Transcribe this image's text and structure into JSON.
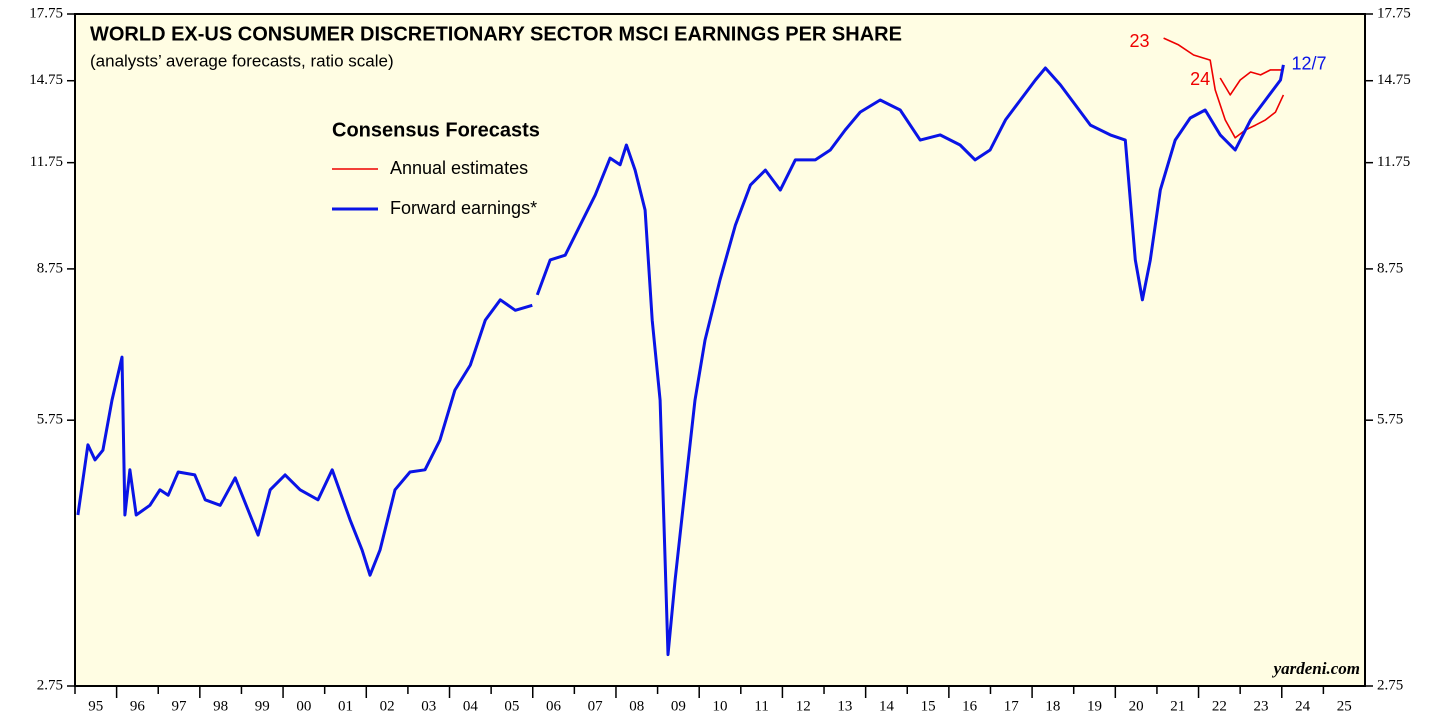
{
  "chart_data": {
    "type": "line",
    "title": "WORLD EX-US CONSUMER DISCRETIONARY SECTOR MSCI EARNINGS PER SHARE",
    "subtitle": "(analysts’ average forecasts, ratio scale)",
    "legend_title": "Consensus Forecasts",
    "source": "yardeni.com",
    "log_scale": true,
    "ylim": [
      2.75,
      17.75
    ],
    "yticks": [
      2.75,
      5.75,
      8.75,
      11.75,
      14.75,
      17.75
    ],
    "xlim": [
      1995,
      2026
    ],
    "xticks": [
      {
        "value": 1995.5,
        "label": "95"
      },
      {
        "value": 1996.5,
        "label": "96"
      },
      {
        "value": 1997.5,
        "label": "97"
      },
      {
        "value": 1998.5,
        "label": "98"
      },
      {
        "value": 1999.5,
        "label": "99"
      },
      {
        "value": 2000.5,
        "label": "00"
      },
      {
        "value": 2001.5,
        "label": "01"
      },
      {
        "value": 2002.5,
        "label": "02"
      },
      {
        "value": 2003.5,
        "label": "03"
      },
      {
        "value": 2004.5,
        "label": "04"
      },
      {
        "value": 2005.5,
        "label": "05"
      },
      {
        "value": 2006.5,
        "label": "06"
      },
      {
        "value": 2007.5,
        "label": "07"
      },
      {
        "value": 2008.5,
        "label": "08"
      },
      {
        "value": 2009.5,
        "label": "09"
      },
      {
        "value": 2010.5,
        "label": "10"
      },
      {
        "value": 2011.5,
        "label": "11"
      },
      {
        "value": 2012.5,
        "label": "12"
      },
      {
        "value": 2013.5,
        "label": "13"
      },
      {
        "value": 2014.5,
        "label": "14"
      },
      {
        "value": 2015.5,
        "label": "15"
      },
      {
        "value": 2016.5,
        "label": "16"
      },
      {
        "value": 2017.5,
        "label": "17"
      },
      {
        "value": 2018.5,
        "label": "18"
      },
      {
        "value": 2019.5,
        "label": "19"
      },
      {
        "value": 2020.5,
        "label": "20"
      },
      {
        "value": 2021.5,
        "label": "21"
      },
      {
        "value": 2022.5,
        "label": "22"
      },
      {
        "value": 2023.5,
        "label": "23"
      },
      {
        "value": 2024.5,
        "label": "24"
      },
      {
        "value": 2025.5,
        "label": "25"
      }
    ],
    "series": [
      {
        "name": "Annual estimates",
        "color": "#ee0000",
        "x": [
          2021.16,
          2021.52,
          2021.88,
          2022.28,
          2022.4,
          2022.64,
          2022.88,
          2023.13,
          2023.37,
          2023.61,
          2023.85,
          2024.04
        ],
        "values": [
          16.6,
          16.29,
          15.84,
          15.62,
          14.38,
          13.23,
          12.59,
          12.87,
          13.04,
          13.23,
          13.52,
          14.18
        ]
      },
      {
        "color": "#ee0000",
        "x": [
          2022.52,
          2022.76,
          2023.0,
          2023.25,
          2023.49,
          2023.73,
          2024.04
        ],
        "values": [
          14.86,
          14.18,
          14.78,
          15.11,
          14.99,
          15.2,
          15.2
        ]
      },
      {
        "name": "Forward earnings*",
        "color": "#0a14e6",
        "x": [
          1995.07,
          1995.31,
          1995.48,
          1995.67,
          1995.89,
          1996.13,
          1996.2,
          1996.32,
          1996.47,
          1996.8,
          1997.04,
          1997.24,
          1997.48,
          1997.88,
          1998.13,
          1998.49,
          1998.85,
          1999.16,
          1999.4,
          1999.69,
          2000.05,
          2000.41,
          2000.84,
          2001.18,
          2001.61,
          2001.9,
          2002.09,
          2002.33,
          2002.69,
          2003.05,
          2003.41,
          2003.77,
          2004.13,
          2004.5,
          2004.86,
          2005.22,
          2005.58,
          2005.99,
          2006.05,
          2006.11,
          2006.42,
          2006.78,
          2007.14,
          2007.5,
          2007.86,
          2008.1,
          2008.25,
          2008.46,
          2008.7,
          2008.87,
          2009.06,
          2009.18,
          2009.25,
          2009.42,
          2009.66,
          2009.9,
          2010.14,
          2010.5,
          2010.87,
          2011.23,
          2011.59,
          2011.95,
          2012.31,
          2012.79,
          2013.15,
          2013.51,
          2013.87,
          2014.35,
          2014.83,
          2015.31,
          2015.79,
          2016.27,
          2016.63,
          2016.99,
          2017.36,
          2017.72,
          2018.08,
          2018.32,
          2018.68,
          2019.04,
          2019.4,
          2019.88,
          2020.24,
          2020.48,
          2020.65,
          2020.84,
          2021.08,
          2021.44,
          2021.8,
          2022.16,
          2022.52,
          2022.88,
          2023.25,
          2023.61,
          2023.97,
          2024.04
        ],
        "values": [
          4.42,
          5.37,
          5.15,
          5.29,
          6.08,
          6.85,
          4.42,
          5.01,
          4.42,
          4.54,
          4.74,
          4.67,
          4.98,
          4.94,
          4.61,
          4.54,
          4.9,
          4.48,
          4.18,
          4.74,
          4.94,
          4.74,
          4.61,
          5.01,
          4.36,
          4.01,
          3.74,
          4.01,
          4.74,
          4.98,
          5.01,
          5.44,
          6.25,
          6.7,
          7.59,
          8.03,
          7.8,
          7.91,
          null,
          8.14,
          8.97,
          9.09,
          9.88,
          10.74,
          11.9,
          11.68,
          12.34,
          11.51,
          10.3,
          7.59,
          6.08,
          3.9,
          3.0,
          3.69,
          4.74,
          6.08,
          7.18,
          8.49,
          9.88,
          11.04,
          11.51,
          10.89,
          11.84,
          11.84,
          12.17,
          12.87,
          13.52,
          13.98,
          13.6,
          12.51,
          12.69,
          12.34,
          11.84,
          12.17,
          13.23,
          13.98,
          14.78,
          15.28,
          14.58,
          13.79,
          13.04,
          12.69,
          12.51,
          8.97,
          8.03,
          8.97,
          10.89,
          12.51,
          13.3,
          13.6,
          12.69,
          12.17,
          13.23,
          13.98,
          14.78,
          15.41
        ]
      }
    ],
    "annotations": [
      {
        "text": "23",
        "color": "#ee0000"
      },
      {
        "text": "24",
        "color": "#ee0000"
      },
      {
        "text": "12/7",
        "color": "#0a14e6"
      }
    ]
  }
}
